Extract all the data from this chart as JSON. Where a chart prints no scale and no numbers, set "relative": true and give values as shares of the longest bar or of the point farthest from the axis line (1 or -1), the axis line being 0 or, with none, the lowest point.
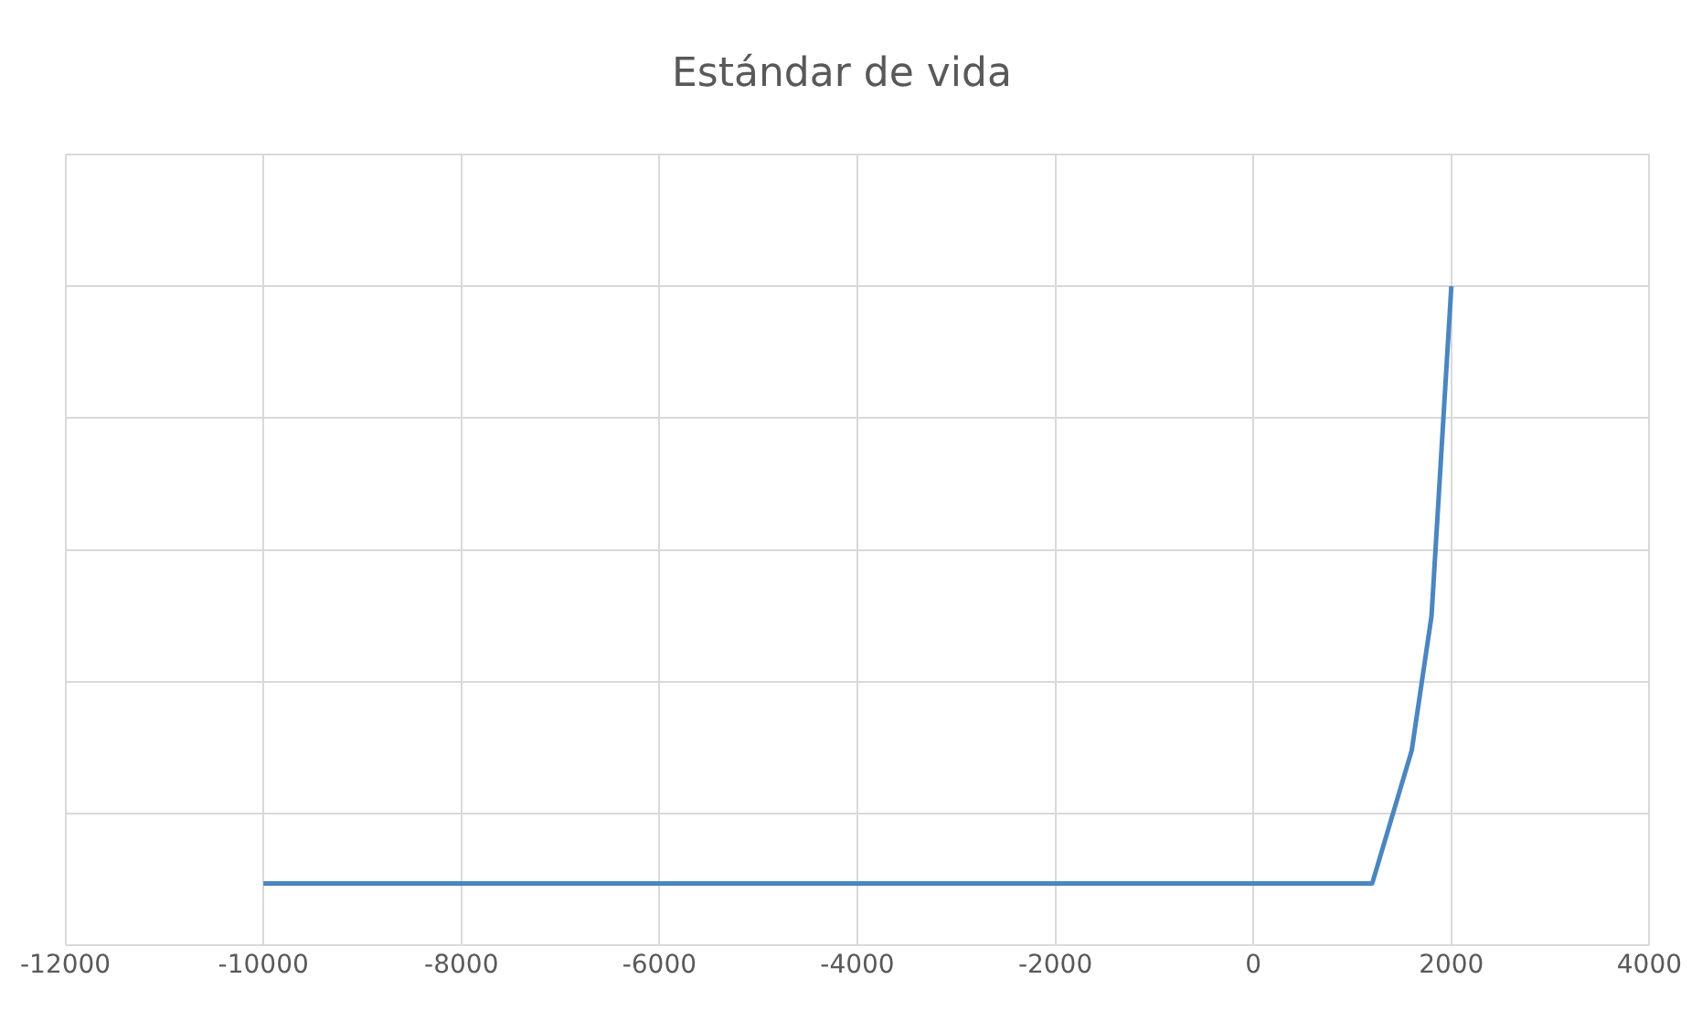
{
  "chart_data": {
    "type": "line",
    "title": "Estándar de vida",
    "relative": true,
    "xlim": [
      -12000,
      4000
    ],
    "xticks": [
      -12000,
      -10000,
      -8000,
      -6000,
      -4000,
      -2000,
      0,
      2000,
      4000
    ],
    "grid": true,
    "legend": false,
    "marker": "none",
    "line_style": "solid",
    "series": [
      {
        "color": "#4a86c0",
        "x": [
          -10000,
          1200,
          1600,
          1800,
          2000
        ],
        "values": [
          0.094,
          0.094,
          0.296,
          0.5,
          1
        ]
      }
    ]
  }
}
